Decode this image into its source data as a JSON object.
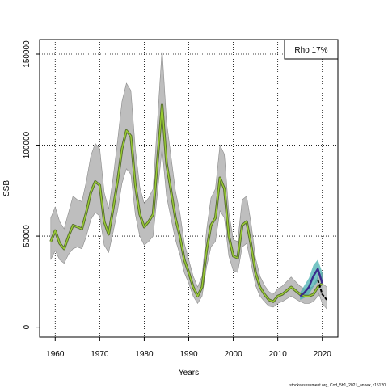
{
  "chart_data": {
    "type": "line",
    "xlabel": "Years",
    "ylabel": "SSB",
    "xlim": [
      1956.5,
      2023.5
    ],
    "ylim": [
      -5500,
      158000
    ],
    "x_ticks": [
      1960,
      1970,
      1980,
      1990,
      2000,
      2010,
      2020
    ],
    "y_ticks": [
      0,
      50000,
      100000,
      150000
    ],
    "grid": true,
    "grid_style": "dotted",
    "legend": {
      "text": "Rho 17%",
      "placement": "top-right"
    },
    "footnote": "stockassessment.org, Cod_5b1_2021_annex, r15120",
    "colors": {
      "band": "#bebebe",
      "band_edge": "#8c8c8c",
      "main_line": "#556b2f",
      "main_line_highlight": "#9acd32",
      "retro_band": "#48b0b0",
      "retro_line": "#3a2a8c",
      "dashed_line": "#000000"
    },
    "series": [
      {
        "role": "estimate",
        "x": [
          1959,
          1960,
          1961,
          1962,
          1963,
          1964,
          1965,
          1966,
          1967,
          1968,
          1969,
          1970,
          1971,
          1972,
          1973,
          1974,
          1975,
          1976,
          1977,
          1978,
          1979,
          1980,
          1981,
          1982,
          1983,
          1984,
          1985,
          1986,
          1987,
          1988,
          1989,
          1990,
          1991,
          1992,
          1993,
          1994,
          1995,
          1996,
          1997,
          1998,
          1999,
          2000,
          2001,
          2002,
          2003,
          2004,
          2005,
          2006,
          2007,
          2008,
          2009,
          2010,
          2011,
          2012,
          2013,
          2014,
          2015,
          2016,
          2017,
          2018,
          2019,
          2020
        ],
        "y": [
          47000,
          53000,
          46000,
          43000,
          50000,
          56000,
          55000,
          54000,
          63000,
          74000,
          80000,
          78000,
          58000,
          51000,
          65000,
          80000,
          98000,
          108000,
          105000,
          78000,
          62000,
          55000,
          58000,
          62000,
          92000,
          122000,
          90000,
          75000,
          60000,
          50000,
          37000,
          30000,
          22000,
          17000,
          22000,
          42000,
          56000,
          60000,
          82000,
          76000,
          50000,
          39000,
          38000,
          56000,
          58000,
          45000,
          30000,
          22000,
          18000,
          15000,
          14000,
          17000,
          18000,
          20000,
          22000,
          20000,
          18000,
          17000,
          17000,
          18000,
          22000,
          24000
        ],
        "lower": [
          37000,
          42000,
          37000,
          35000,
          40000,
          43000,
          44000,
          43000,
          50000,
          59000,
          63000,
          61000,
          45000,
          41000,
          52000,
          64000,
          79000,
          87000,
          84000,
          62000,
          50000,
          45000,
          47000,
          50000,
          74000,
          98000,
          72000,
          60000,
          48000,
          40000,
          30000,
          24000,
          17000,
          13000,
          17000,
          33000,
          44000,
          47000,
          64000,
          60000,
          39000,
          31000,
          30000,
          44000,
          46000,
          35000,
          23000,
          17000,
          14000,
          11500,
          11000,
          13000,
          14000,
          15500,
          17000,
          15500,
          14000,
          13000,
          13000,
          14000,
          17000,
          18000
        ],
        "upper": [
          60000,
          66000,
          58000,
          54000,
          63000,
          72000,
          70000,
          69000,
          80000,
          94000,
          101000,
          98000,
          74000,
          65000,
          82000,
          102000,
          124000,
          134000,
          130000,
          98000,
          77000,
          68000,
          71000,
          76000,
          114000,
          153000,
          113000,
          94000,
          75000,
          63000,
          46000,
          37000,
          28000,
          22000,
          28000,
          53000,
          71000,
          76000,
          100000,
          95000,
          63000,
          48000,
          47000,
          70000,
          72000,
          57000,
          38000,
          28000,
          23000,
          19500,
          18000,
          21000,
          22500,
          25000,
          27500,
          25000,
          22500,
          21000,
          21000,
          22500,
          27500,
          30000
        ]
      },
      {
        "role": "retrospective",
        "x": [
          2015,
          2016,
          2017,
          2018,
          2019,
          2020
        ],
        "y": [
          17000,
          19000,
          22000,
          28000,
          32000,
          24000
        ],
        "lower": [
          15000,
          16000,
          18000,
          22000,
          25000,
          20000
        ],
        "upper": [
          19000,
          23000,
          27000,
          34000,
          37000,
          30000
        ]
      },
      {
        "role": "forecast",
        "style": "dashed",
        "x": [
          2019,
          2020,
          2021
        ],
        "y": [
          26000,
          18000,
          15000
        ],
        "lower": [
          20000,
          13000,
          10000
        ],
        "upper": [
          33000,
          24000,
          22000
        ]
      }
    ]
  }
}
